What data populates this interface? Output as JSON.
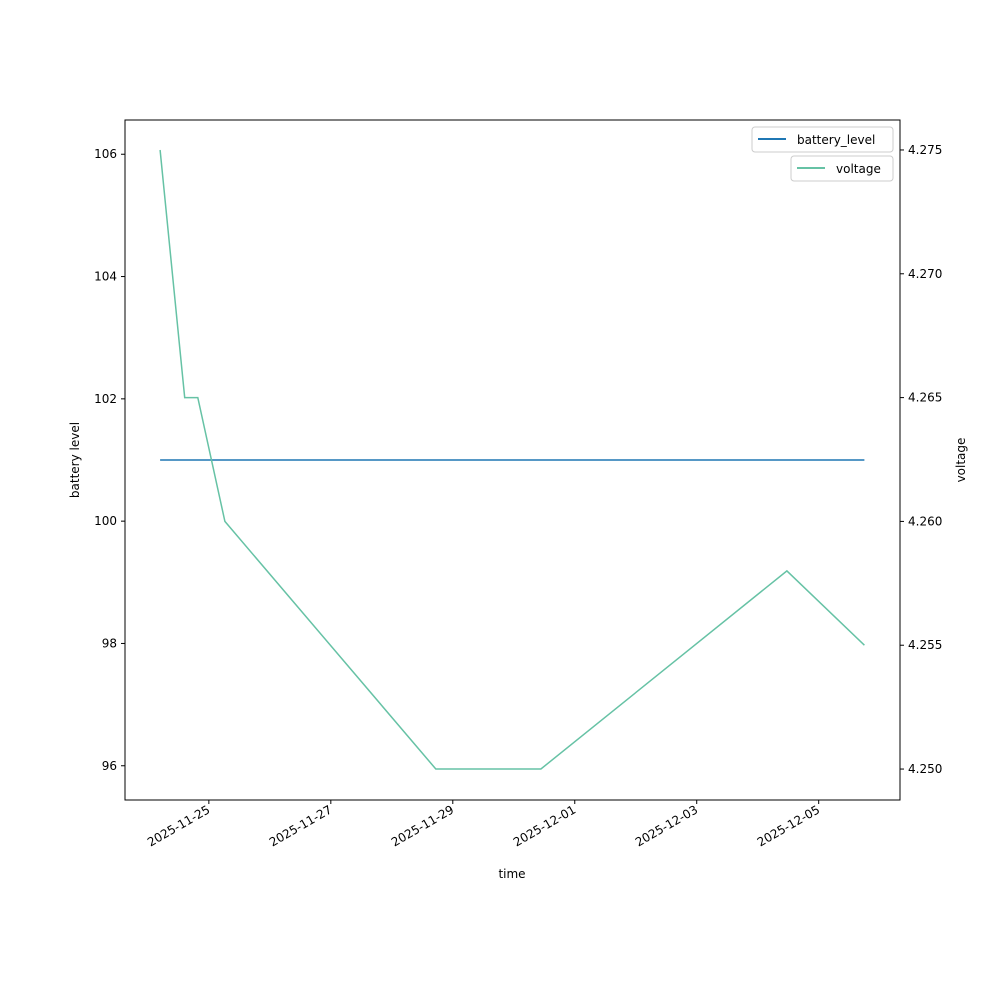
{
  "chart_data": {
    "type": "line",
    "xlabel": "time",
    "ylabel_left": "battery level",
    "ylabel_right": "voltage",
    "xlim": [
      "2025-11-23T15:00",
      "2025-12-06T08:00"
    ],
    "ylim_left": [
      95.44,
      106.56
    ],
    "ylim_right": [
      4.24875,
      4.27621
    ],
    "x_ticks": [
      "2025-11-25",
      "2025-11-27",
      "2025-11-29",
      "2025-12-01",
      "2025-12-03",
      "2025-12-05"
    ],
    "y_ticks_left": [
      "96",
      "98",
      "100",
      "102",
      "104",
      "106"
    ],
    "y_ticks_right": [
      "4.250",
      "4.255",
      "4.260",
      "4.265",
      "4.270",
      "4.275"
    ],
    "grid": false,
    "legend_placement": "top-right",
    "series": [
      {
        "name": "battery_level",
        "axis": "left",
        "color": "#1f77b4",
        "x": [
          "2025-11-24T04:48",
          "2025-12-05T18:00"
        ],
        "y": [
          101,
          101
        ]
      },
      {
        "name": "voltage",
        "axis": "right",
        "color": "#66c2a5",
        "x": [
          "2025-11-24T04:48",
          "2025-11-24T14:30",
          "2025-11-24T19:40",
          "2025-11-25T06:20",
          "2025-11-28T17:20",
          "2025-11-30T10:40",
          "2025-12-04T11:30",
          "2025-12-05T18:00"
        ],
        "y": [
          4.275,
          4.265,
          4.265,
          4.26,
          4.25,
          4.25,
          4.258,
          4.255
        ]
      }
    ]
  }
}
